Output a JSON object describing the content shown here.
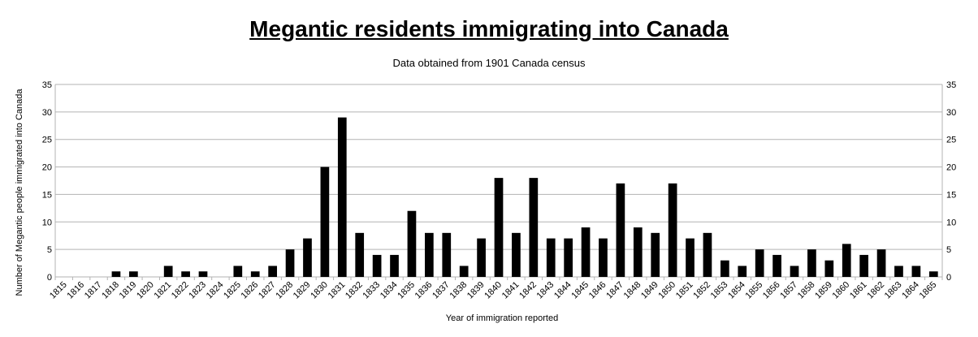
{
  "chart_data": {
    "type": "bar",
    "title": "Megantic residents immigrating into Canada",
    "subtitle": "Data obtained from 1901 Canada census",
    "xlabel": "Year of immigration reported",
    "ylabel": "Number of Megantic people immigrated into Canada",
    "ylim": [
      0,
      35
    ],
    "yticks": [
      0,
      5,
      10,
      15,
      20,
      25,
      30,
      35
    ],
    "grid": true,
    "secondary_y_axis": true,
    "bar_color": "#000000",
    "grid_color": "#b3b3b3",
    "categories": [
      "1815",
      "1816",
      "1817",
      "1818",
      "1819",
      "1820",
      "1821",
      "1822",
      "1823",
      "1824",
      "1825",
      "1826",
      "1827",
      "1828",
      "1829",
      "1830",
      "1831",
      "1832",
      "1833",
      "1834",
      "1835",
      "1836",
      "1837",
      "1838",
      "1839",
      "1840",
      "1841",
      "1842",
      "1843",
      "1844",
      "1845",
      "1846",
      "1847",
      "1848",
      "1849",
      "1850",
      "1851",
      "1852",
      "1853",
      "1854",
      "1855",
      "1856",
      "1857",
      "1858",
      "1859",
      "1860",
      "1861",
      "1862",
      "1863",
      "1864",
      "1865"
    ],
    "values": [
      0,
      0,
      0,
      1,
      1,
      0,
      2,
      1,
      1,
      0,
      2,
      1,
      2,
      5,
      7,
      20,
      29,
      8,
      4,
      4,
      12,
      8,
      8,
      2,
      7,
      18,
      8,
      18,
      7,
      7,
      9,
      7,
      17,
      9,
      8,
      17,
      7,
      8,
      3,
      2,
      5,
      4,
      2,
      5,
      3,
      6,
      4,
      5,
      2,
      2,
      1
    ]
  }
}
